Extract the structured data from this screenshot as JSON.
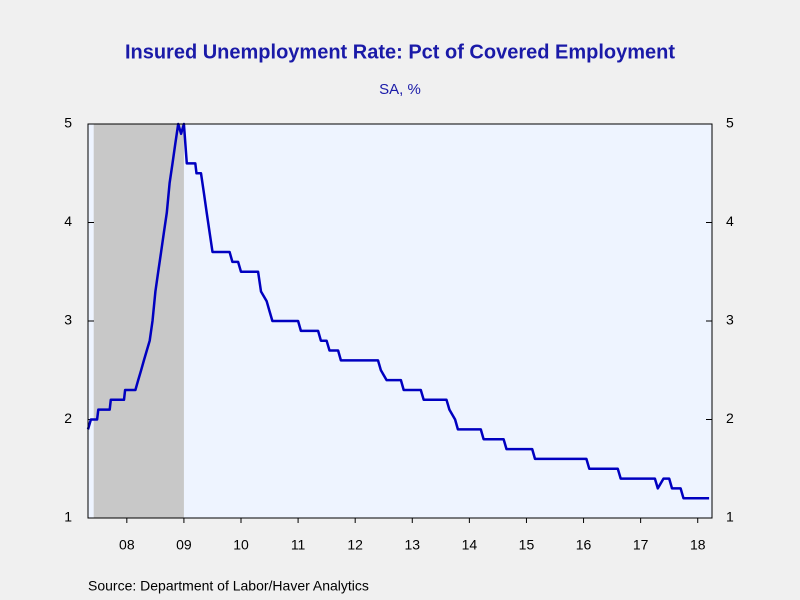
{
  "chart_data": {
    "type": "line",
    "title": "Insured Unemployment Rate: Pct of Covered Employment",
    "subtitle": "SA, %",
    "source": "Source:  Department of Labor/Haver Analytics",
    "x": [
      2007.82,
      2007.87,
      2007.98,
      2008.0,
      2008.2,
      2008.22,
      2008.45,
      2008.47,
      2008.65,
      2008.7,
      2008.75,
      2008.8,
      2008.85,
      2008.9,
      2008.95,
      2009.0,
      2009.05,
      2009.1,
      2009.15,
      2009.2,
      2009.25,
      2009.3,
      2009.35,
      2009.4,
      2009.45,
      2009.5,
      2009.55,
      2009.7,
      2009.72,
      2009.8,
      2009.85,
      2009.9,
      2009.95,
      2010.0,
      2010.3,
      2010.35,
      2010.45,
      2010.5,
      2010.8,
      2010.85,
      2010.95,
      2011.0,
      2011.05,
      2011.5,
      2011.55,
      2011.85,
      2011.9,
      2012.0,
      2012.05,
      2012.2,
      2012.25,
      2012.9,
      2012.95,
      2013.05,
      2013.3,
      2013.35,
      2013.65,
      2013.7,
      2014.1,
      2014.15,
      2014.25,
      2014.3,
      2014.7,
      2014.75,
      2015.1,
      2015.15,
      2015.6,
      2015.65,
      2016.55,
      2016.6,
      2017.1,
      2017.15,
      2017.75,
      2017.8,
      2017.9,
      2018.0,
      2018.05,
      2018.2,
      2018.25,
      2018.7
    ],
    "series": [
      {
        "color": "#0000c0",
        "values": [
          1.9,
          2.0,
          2.0,
          2.1,
          2.1,
          2.2,
          2.2,
          2.3,
          2.3,
          2.4,
          2.5,
          2.6,
          2.7,
          2.8,
          3.0,
          3.3,
          3.5,
          3.7,
          3.9,
          4.1,
          4.4,
          4.6,
          4.8,
          5.0,
          4.9,
          5.0,
          4.6,
          4.6,
          4.5,
          4.5,
          4.3,
          4.1,
          3.9,
          3.7,
          3.7,
          3.6,
          3.6,
          3.5,
          3.5,
          3.3,
          3.2,
          3.1,
          3.0,
          3.0,
          2.9,
          2.9,
          2.8,
          2.8,
          2.7,
          2.7,
          2.6,
          2.6,
          2.5,
          2.4,
          2.4,
          2.3,
          2.3,
          2.2,
          2.2,
          2.1,
          2.0,
          1.9,
          1.9,
          1.8,
          1.8,
          1.7,
          1.7,
          1.6,
          1.6,
          1.5,
          1.5,
          1.4,
          1.4,
          1.3,
          1.4,
          1.4,
          1.3,
          1.3,
          1.2,
          1.2
        ]
      }
    ],
    "recession_shading": [
      2007.92,
      2009.5
    ],
    "xlim": [
      2007.82,
      2018.75
    ],
    "xticks": [
      {
        "value": 2008.5,
        "label": "08"
      },
      {
        "value": 2009.5,
        "label": "09"
      },
      {
        "value": 2010.5,
        "label": "10"
      },
      {
        "value": 2011.5,
        "label": "11"
      },
      {
        "value": 2012.5,
        "label": "12"
      },
      {
        "value": 2013.5,
        "label": "13"
      },
      {
        "value": 2014.5,
        "label": "14"
      },
      {
        "value": 2015.5,
        "label": "15"
      },
      {
        "value": 2016.5,
        "label": "16"
      },
      {
        "value": 2017.5,
        "label": "17"
      },
      {
        "value": 2018.5,
        "label": "18"
      }
    ],
    "ylim": [
      1,
      5
    ],
    "yticks": [
      1,
      2,
      3,
      4,
      5
    ],
    "right_axis": true
  }
}
